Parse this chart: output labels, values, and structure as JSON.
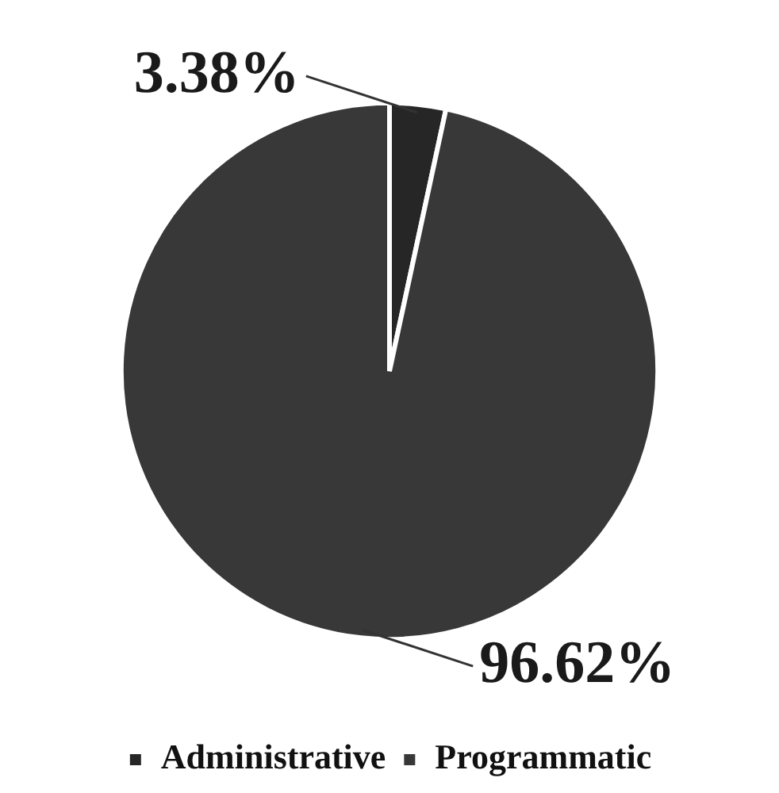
{
  "chart_data": {
    "type": "pie",
    "categories": [
      "Administrative",
      "Programmatic"
    ],
    "values": [
      3.38,
      96.62
    ],
    "colors": [
      "#262626",
      "#383838"
    ],
    "value_labels": [
      "3.38%",
      "96.62%"
    ],
    "legend": "bottom"
  }
}
